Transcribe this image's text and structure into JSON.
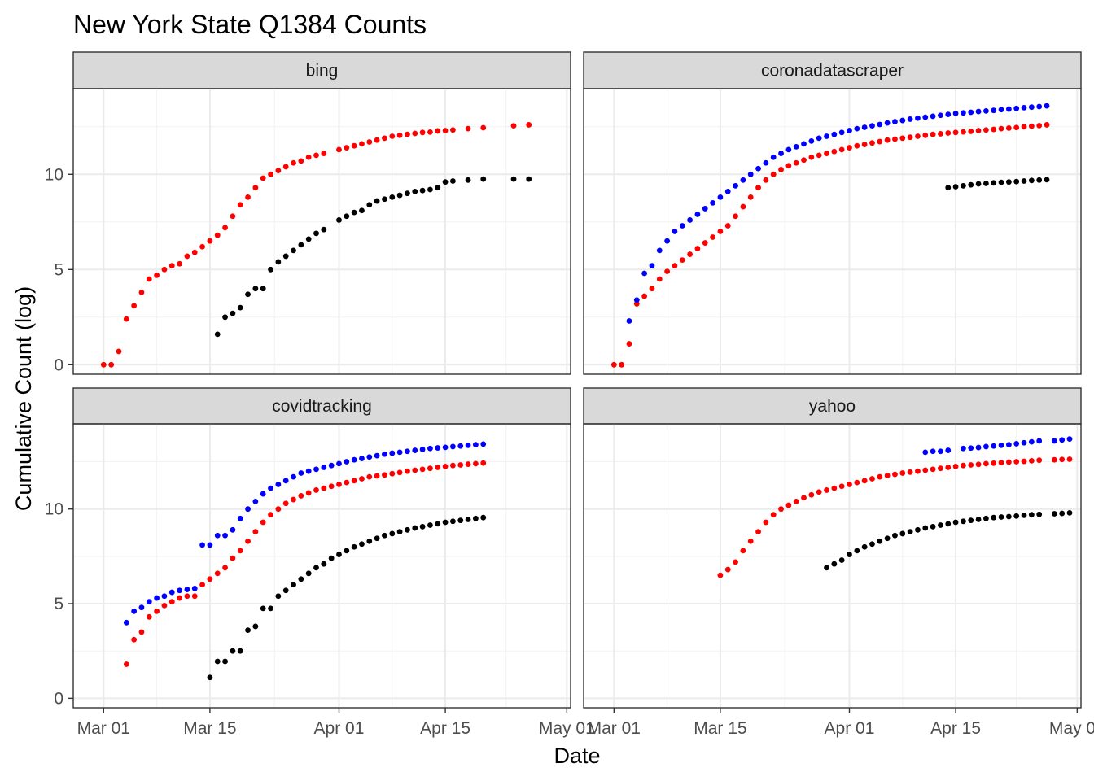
{
  "chart_data": {
    "type": "scatter",
    "title": "New York State Q1384 Counts",
    "xlabel": "Date",
    "ylabel": "Cumulative Count (log)",
    "x_ticks": [
      {
        "label": "Mar 01",
        "day": 0
      },
      {
        "label": "Mar 15",
        "day": 14
      },
      {
        "label": "Apr 01",
        "day": 31
      },
      {
        "label": "Apr 15",
        "day": 45
      },
      {
        "label": "May 01",
        "day": 61
      }
    ],
    "xlim_days": [
      -4,
      61.5
    ],
    "y_ticks": [
      0,
      5,
      10
    ],
    "ylim": [
      -0.5,
      14.5
    ],
    "series_colors": {
      "black": "#000000",
      "red": "#ff0000",
      "blue": "#0000ff"
    },
    "facets": [
      {
        "name": "bing",
        "series": {
          "red": {
            "x": [
              0,
              1,
              2,
              3,
              4,
              5,
              6,
              7,
              8,
              9,
              10,
              11,
              12,
              13,
              14,
              15,
              16,
              17,
              18,
              19,
              20,
              21,
              22,
              23,
              24,
              25,
              26,
              27,
              28,
              29,
              31,
              32,
              33,
              34,
              35,
              36,
              37,
              38,
              39,
              40,
              41,
              42,
              43,
              44,
              45,
              46,
              48,
              50,
              54,
              56
            ],
            "y": [
              0,
              0,
              0.7,
              2.4,
              3.1,
              3.8,
              4.5,
              4.7,
              5.0,
              5.2,
              5.3,
              5.7,
              5.9,
              6.2,
              6.5,
              6.8,
              7.2,
              7.8,
              8.4,
              8.8,
              9.3,
              9.8,
              10.0,
              10.2,
              10.4,
              10.6,
              10.7,
              10.9,
              11.0,
              11.1,
              11.3,
              11.4,
              11.5,
              11.6,
              11.7,
              11.8,
              11.9,
              12.0,
              12.05,
              12.1,
              12.15,
              12.2,
              12.22,
              12.28,
              12.3,
              12.33,
              12.4,
              12.45,
              12.55,
              12.6
            ]
          },
          "black": {
            "x": [
              15,
              16,
              17,
              18,
              19,
              20,
              21,
              22,
              23,
              24,
              25,
              26,
              27,
              28,
              29,
              31,
              32,
              33,
              34,
              35,
              36,
              37,
              38,
              39,
              40,
              41,
              42,
              43,
              44,
              45,
              46,
              48,
              50,
              54,
              56
            ],
            "y": [
              1.6,
              2.5,
              2.7,
              3.0,
              3.7,
              4.0,
              4.0,
              5.0,
              5.4,
              5.7,
              6.0,
              6.3,
              6.6,
              6.9,
              7.1,
              7.6,
              7.8,
              8.0,
              8.1,
              8.4,
              8.6,
              8.7,
              8.8,
              8.9,
              9.0,
              9.1,
              9.15,
              9.2,
              9.3,
              9.6,
              9.65,
              9.7,
              9.75,
              9.75,
              9.75
            ]
          },
          "blue": {
            "x": [],
            "y": []
          }
        }
      },
      {
        "name": "coronadatascraper",
        "series": {
          "blue": {
            "x": [
              2,
              3,
              4,
              5,
              6,
              7,
              8,
              9,
              10,
              11,
              12,
              13,
              14,
              15,
              16,
              17,
              18,
              19,
              20,
              21,
              22,
              23,
              24,
              25,
              26,
              27,
              28,
              29,
              30,
              31,
              32,
              33,
              34,
              35,
              36,
              37,
              38,
              39,
              40,
              41,
              42,
              43,
              44,
              45,
              46,
              47,
              48,
              49,
              50,
              51,
              52,
              53,
              54,
              55,
              56,
              57
            ],
            "y": [
              2.3,
              3.4,
              4.8,
              5.2,
              6.0,
              6.5,
              7.0,
              7.3,
              7.6,
              7.9,
              8.2,
              8.5,
              8.8,
              9.1,
              9.4,
              9.7,
              10.0,
              10.3,
              10.6,
              10.9,
              11.1,
              11.3,
              11.45,
              11.6,
              11.75,
              11.9,
              12.0,
              12.1,
              12.2,
              12.3,
              12.4,
              12.47,
              12.55,
              12.62,
              12.7,
              12.77,
              12.83,
              12.9,
              12.95,
              13.0,
              13.05,
              13.1,
              13.15,
              13.2,
              13.23,
              13.26,
              13.3,
              13.33,
              13.36,
              13.4,
              13.43,
              13.46,
              13.5,
              13.53,
              13.56,
              13.6
            ]
          },
          "red": {
            "x": [
              0,
              1,
              2,
              3,
              4,
              5,
              6,
              7,
              8,
              9,
              10,
              11,
              12,
              13,
              14,
              15,
              16,
              17,
              18,
              19,
              20,
              21,
              22,
              23,
              24,
              25,
              26,
              27,
              28,
              29,
              30,
              31,
              32,
              33,
              34,
              35,
              36,
              37,
              38,
              39,
              40,
              41,
              42,
              43,
              44,
              45,
              46,
              47,
              48,
              49,
              50,
              51,
              52,
              53,
              54,
              55,
              56,
              57
            ],
            "y": [
              0,
              0,
              1.1,
              3.2,
              3.6,
              4.0,
              4.5,
              4.9,
              5.2,
              5.5,
              5.8,
              6.1,
              6.4,
              6.7,
              7.0,
              7.3,
              7.8,
              8.3,
              8.8,
              9.3,
              9.7,
              10.0,
              10.25,
              10.45,
              10.6,
              10.75,
              10.9,
              11.0,
              11.1,
              11.2,
              11.3,
              11.4,
              11.5,
              11.57,
              11.65,
              11.72,
              11.8,
              11.85,
              11.9,
              11.95,
              12.0,
              12.05,
              12.1,
              12.13,
              12.17,
              12.2,
              12.23,
              12.26,
              12.3,
              12.33,
              12.36,
              12.4,
              12.43,
              12.46,
              12.5,
              12.53,
              12.56,
              12.6
            ]
          },
          "black": {
            "x": [
              44,
              45,
              46,
              47,
              48,
              49,
              50,
              51,
              52,
              53,
              54,
              55,
              56,
              57
            ],
            "y": [
              9.3,
              9.35,
              9.4,
              9.45,
              9.5,
              9.52,
              9.55,
              9.58,
              9.6,
              9.62,
              9.65,
              9.68,
              9.7,
              9.72
            ]
          }
        }
      },
      {
        "name": "covidtracking",
        "series": {
          "blue": {
            "x": [
              3,
              4,
              5,
              6,
              7,
              8,
              9,
              10,
              11,
              12,
              13,
              14,
              15,
              16,
              17,
              18,
              19,
              20,
              21,
              22,
              23,
              24,
              25,
              26,
              27,
              28,
              29,
              30,
              31,
              32,
              33,
              34,
              35,
              36,
              37,
              38,
              39,
              40,
              41,
              42,
              43,
              44,
              45,
              46,
              47,
              48,
              49,
              50
            ],
            "y": [
              4.0,
              4.6,
              4.8,
              5.1,
              5.3,
              5.4,
              5.6,
              5.7,
              5.75,
              5.8,
              8.1,
              8.1,
              8.6,
              8.6,
              8.9,
              9.5,
              10.0,
              10.4,
              10.8,
              11.1,
              11.3,
              11.5,
              11.7,
              11.9,
              12.0,
              12.1,
              12.2,
              12.3,
              12.4,
              12.5,
              12.6,
              12.67,
              12.75,
              12.82,
              12.9,
              12.95,
              13.0,
              13.05,
              13.1,
              13.15,
              13.2,
              13.23,
              13.26,
              13.3,
              13.33,
              13.37,
              13.4,
              13.43
            ]
          },
          "red": {
            "x": [
              3,
              4,
              5,
              6,
              7,
              8,
              9,
              10,
              11,
              12,
              13,
              14,
              15,
              16,
              17,
              18,
              19,
              20,
              21,
              22,
              23,
              24,
              25,
              26,
              27,
              28,
              29,
              30,
              31,
              32,
              33,
              34,
              35,
              36,
              37,
              38,
              39,
              40,
              41,
              42,
              43,
              44,
              45,
              46,
              47,
              48,
              49,
              50
            ],
            "y": [
              1.8,
              3.1,
              3.5,
              4.3,
              4.6,
              4.9,
              5.1,
              5.3,
              5.4,
              5.4,
              6.0,
              6.3,
              6.6,
              6.9,
              7.4,
              7.8,
              8.3,
              8.8,
              9.3,
              9.7,
              10.0,
              10.3,
              10.5,
              10.7,
              10.85,
              11.0,
              11.1,
              11.2,
              11.3,
              11.4,
              11.5,
              11.6,
              11.7,
              11.75,
              11.8,
              11.87,
              11.93,
              12.0,
              12.05,
              12.1,
              12.15,
              12.2,
              12.25,
              12.3,
              12.33,
              12.37,
              12.4,
              12.43
            ]
          },
          "black": {
            "x": [
              14,
              15,
              16,
              17,
              18,
              19,
              20,
              21,
              22,
              23,
              24,
              25,
              26,
              27,
              28,
              29,
              30,
              31,
              32,
              33,
              34,
              35,
              36,
              37,
              38,
              39,
              40,
              41,
              42,
              43,
              44,
              45,
              46,
              47,
              48,
              49,
              50
            ],
            "y": [
              1.1,
              1.95,
              1.95,
              2.5,
              2.5,
              3.6,
              3.8,
              4.75,
              4.75,
              5.4,
              5.7,
              6.0,
              6.3,
              6.6,
              6.9,
              7.1,
              7.4,
              7.6,
              7.8,
              8.0,
              8.15,
              8.3,
              8.45,
              8.6,
              8.7,
              8.8,
              8.9,
              9.0,
              9.07,
              9.15,
              9.22,
              9.3,
              9.35,
              9.4,
              9.45,
              9.5,
              9.55
            ]
          }
        }
      },
      {
        "name": "yahoo",
        "series": {
          "blue": {
            "x": [
              41,
              42,
              43,
              44,
              46,
              47,
              48,
              49,
              50,
              51,
              52,
              53,
              54,
              55,
              56,
              58,
              59,
              60
            ],
            "y": [
              13.0,
              13.05,
              13.05,
              13.1,
              13.2,
              13.22,
              13.25,
              13.3,
              13.33,
              13.37,
              13.4,
              13.45,
              13.5,
              13.55,
              13.6,
              13.6,
              13.65,
              13.7
            ]
          },
          "red": {
            "x": [
              14,
              15,
              16,
              17,
              18,
              19,
              20,
              21,
              22,
              23,
              24,
              25,
              26,
              27,
              28,
              29,
              30,
              31,
              32,
              33,
              34,
              35,
              36,
              37,
              38,
              39,
              40,
              41,
              42,
              43,
              44,
              45,
              46,
              47,
              48,
              49,
              50,
              51,
              52,
              53,
              54,
              55,
              56,
              58,
              59,
              60
            ],
            "y": [
              6.5,
              6.8,
              7.2,
              7.8,
              8.3,
              8.8,
              9.3,
              9.7,
              10.0,
              10.2,
              10.4,
              10.6,
              10.75,
              10.9,
              11.0,
              11.1,
              11.2,
              11.3,
              11.4,
              11.5,
              11.6,
              11.7,
              11.77,
              11.83,
              11.9,
              11.95,
              12.0,
              12.05,
              12.1,
              12.15,
              12.2,
              12.25,
              12.3,
              12.33,
              12.36,
              12.4,
              12.42,
              12.45,
              12.48,
              12.5,
              12.52,
              12.55,
              12.58,
              12.6,
              12.62,
              12.63
            ]
          },
          "black": {
            "x": [
              28,
              29,
              30,
              31,
              32,
              33,
              34,
              35,
              36,
              37,
              38,
              39,
              40,
              41,
              42,
              43,
              44,
              45,
              46,
              47,
              48,
              49,
              50,
              51,
              52,
              53,
              54,
              55,
              56,
              58,
              59,
              60
            ],
            "y": [
              6.9,
              7.1,
              7.3,
              7.6,
              7.8,
              8.0,
              8.15,
              8.3,
              8.45,
              8.6,
              8.7,
              8.8,
              8.9,
              9.0,
              9.07,
              9.15,
              9.22,
              9.3,
              9.35,
              9.4,
              9.45,
              9.5,
              9.55,
              9.58,
              9.6,
              9.63,
              9.67,
              9.7,
              9.72,
              9.75,
              9.77,
              9.8
            ]
          }
        }
      }
    ]
  }
}
